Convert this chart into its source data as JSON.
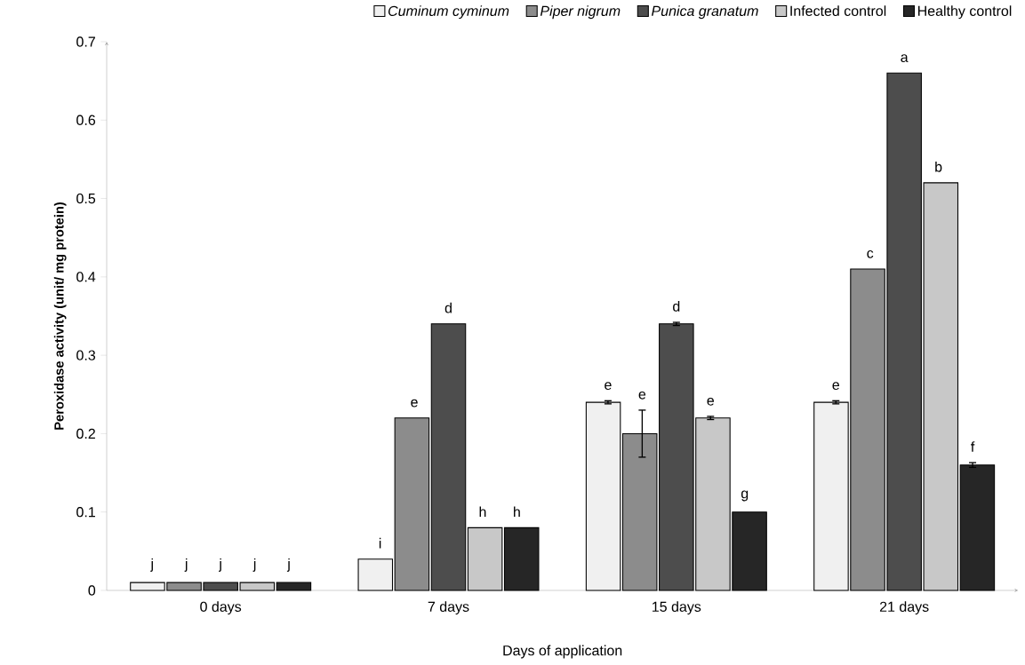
{
  "chart_data": {
    "type": "bar",
    "xlabel": "Days of application",
    "ylabel": "Peroxidase activity (unit/ mg protein)",
    "categories": [
      "0 days",
      "7 days",
      "15 days",
      "21 days"
    ],
    "series": [
      {
        "name": "*Cuminum cyminum*",
        "color": "#f0f0f0",
        "values": [
          0.01,
          0.04,
          0.24,
          0.24
        ],
        "errors": [
          null,
          null,
          0.002,
          0.002
        ],
        "value_labels": [
          "j",
          "i",
          "e",
          "e"
        ]
      },
      {
        "name": "*Piper nigrum*",
        "color": "#8c8c8c",
        "values": [
          0.01,
          0.22,
          0.2,
          0.41
        ],
        "errors": [
          null,
          null,
          0.03,
          null
        ],
        "value_labels": [
          "j",
          "e",
          "e",
          "c"
        ]
      },
      {
        "name": "*Punica granatum*",
        "color": "#4d4d4d",
        "values": [
          0.01,
          0.34,
          0.34,
          0.66
        ],
        "errors": [
          null,
          null,
          0.002,
          null
        ],
        "value_labels": [
          "j",
          "d",
          "d",
          "a"
        ]
      },
      {
        "name": "Infected control",
        "color": "#c8c8c8",
        "values": [
          0.01,
          0.08,
          0.22,
          0.52
        ],
        "errors": [
          null,
          null,
          0.002,
          null
        ],
        "value_labels": [
          "j",
          "h",
          "e",
          "b"
        ]
      },
      {
        "name": "Healthy control",
        "color": "#262626",
        "values": [
          0.01,
          0.08,
          0.1,
          0.16
        ],
        "errors": [
          null,
          null,
          null,
          0.003
        ],
        "value_labels": [
          "j",
          "h",
          "g",
          "f"
        ]
      }
    ],
    "ylim": [
      0,
      0.7
    ],
    "yticks": [
      0,
      0.1,
      0.2,
      0.3,
      0.4,
      0.5,
      0.6,
      0.7
    ],
    "grid": false,
    "legend": "top"
  }
}
